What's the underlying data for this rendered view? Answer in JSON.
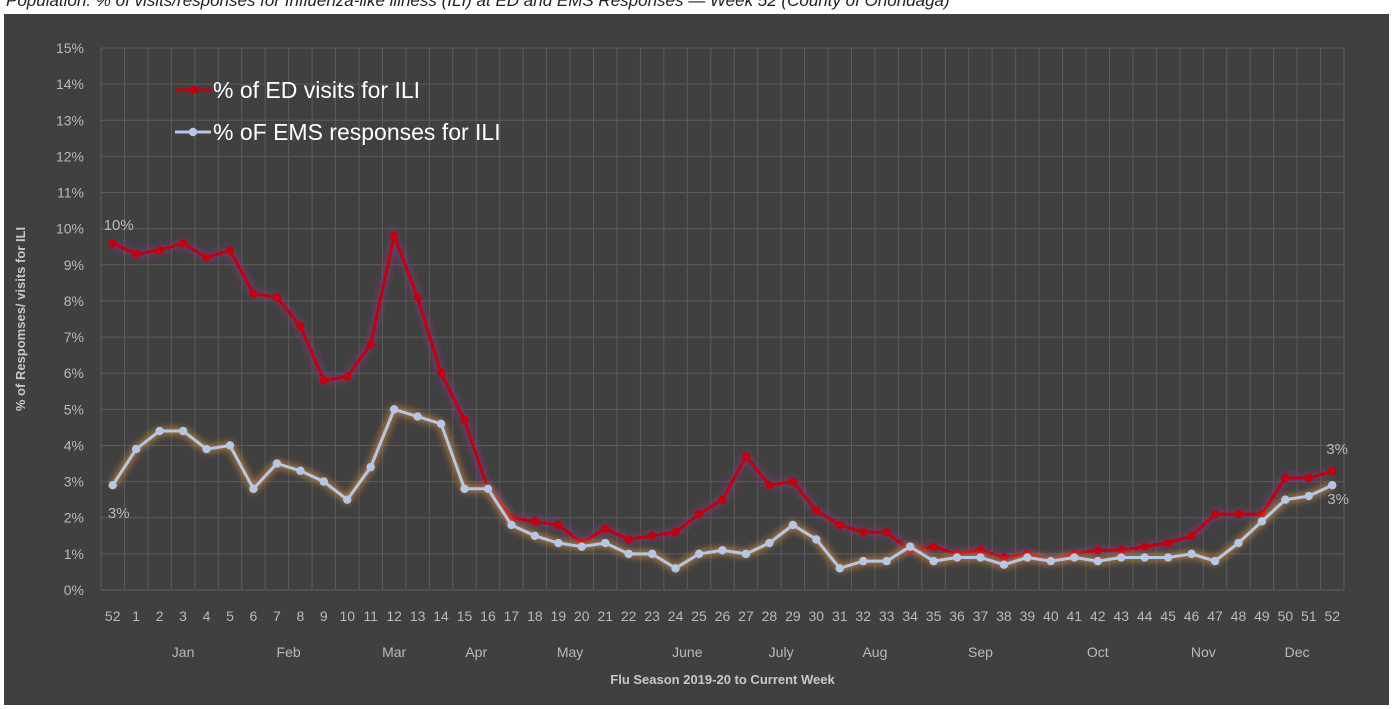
{
  "header": {
    "partial_title": "Population: % of visits/responses for Influenza-like illness (ILI) at ED and EMS Responses — Week 52 (County of Onondaga)"
  },
  "colors": {
    "background": "#404040",
    "grid": "#5c5c5c",
    "ed_series": "#c0000f",
    "ems_series": "#b4c7e7",
    "tick_text": "#b9b9b9"
  },
  "chart_data": {
    "type": "line",
    "title": "",
    "xlabel": "Flu Season 2019-20 to Current Week",
    "ylabel": "% of Respomses/ visits for ILI",
    "ylim": [
      0,
      15
    ],
    "y_ticks": [
      "0%",
      "1%",
      "2%",
      "3%",
      "4%",
      "5%",
      "6%",
      "7%",
      "8%",
      "9%",
      "10%",
      "11%",
      "12%",
      "13%",
      "14%",
      "15%"
    ],
    "grid": true,
    "legend_position": "top-left",
    "weeks": [
      "52",
      "1",
      "2",
      "3",
      "4",
      "5",
      "6",
      "7",
      "8",
      "9",
      "10",
      "11",
      "12",
      "13",
      "14",
      "15",
      "16",
      "17",
      "18",
      "19",
      "20",
      "21",
      "22",
      "23",
      "24",
      "25",
      "26",
      "27",
      "28",
      "29",
      "30",
      "31",
      "32",
      "33",
      "34",
      "35",
      "36",
      "37",
      "38",
      "39",
      "40",
      "41",
      "42",
      "43",
      "44",
      "45",
      "46",
      "47",
      "48",
      "49",
      "50",
      "51",
      "52"
    ],
    "months": [
      {
        "label": "Jan",
        "start": 1,
        "end": 5
      },
      {
        "label": "Feb",
        "start": 6,
        "end": 9
      },
      {
        "label": "Mar",
        "start": 10,
        "end": 14
      },
      {
        "label": "Apr",
        "start": 15,
        "end": 16
      },
      {
        "label": "May",
        "start": 17,
        "end": 22
      },
      {
        "label": "June",
        "start": 23,
        "end": 26
      },
      {
        "label": "July",
        "start": 27,
        "end": 30
      },
      {
        "label": "Aug",
        "start": 31,
        "end": 34
      },
      {
        "label": "Sep",
        "start": 35,
        "end": 39
      },
      {
        "label": "Oct",
        "start": 40,
        "end": 44
      },
      {
        "label": "Nov",
        "start": 45,
        "end": 48
      },
      {
        "label": "Dec",
        "start": 49,
        "end": 52
      }
    ],
    "series": [
      {
        "name": "% of ED visits for ILI",
        "values": [
          9.6,
          9.3,
          9.4,
          9.6,
          9.2,
          9.4,
          8.2,
          8.1,
          7.3,
          5.8,
          5.9,
          6.8,
          9.8,
          8.1,
          6.0,
          4.7,
          2.8,
          2.0,
          1.9,
          1.8,
          1.3,
          1.7,
          1.4,
          1.5,
          1.6,
          2.1,
          2.5,
          3.7,
          2.9,
          3.0,
          2.2,
          1.8,
          1.6,
          1.6,
          1.1,
          1.2,
          1.0,
          1.1,
          0.9,
          1.0,
          0.8,
          1.0,
          1.1,
          1.1,
          1.2,
          1.3,
          1.5,
          2.1,
          2.1,
          2.1,
          3.1,
          3.1,
          3.3
        ]
      },
      {
        "name": "% oF EMS responses for ILI",
        "values": [
          2.9,
          3.9,
          4.4,
          4.4,
          3.9,
          4.0,
          2.8,
          3.5,
          3.3,
          3.0,
          2.5,
          3.4,
          5.0,
          4.8,
          4.6,
          2.8,
          2.8,
          1.8,
          1.5,
          1.3,
          1.2,
          1.3,
          1.0,
          1.0,
          0.6,
          1.0,
          1.1,
          1.0,
          1.3,
          1.8,
          1.4,
          0.6,
          0.8,
          0.8,
          1.2,
          0.8,
          0.9,
          0.9,
          0.7,
          0.9,
          0.8,
          0.9,
          0.8,
          0.9,
          0.9,
          0.9,
          1.0,
          0.8,
          1.3,
          1.9,
          2.5,
          2.6,
          2.9
        ]
      }
    ],
    "data_labels": [
      {
        "series": 0,
        "index": 0,
        "text": "10%"
      },
      {
        "series": 1,
        "index": 0,
        "text": "3%"
      },
      {
        "series": 0,
        "index": 52,
        "text": "3%"
      },
      {
        "series": 1,
        "index": 52,
        "text": "3%"
      }
    ]
  }
}
